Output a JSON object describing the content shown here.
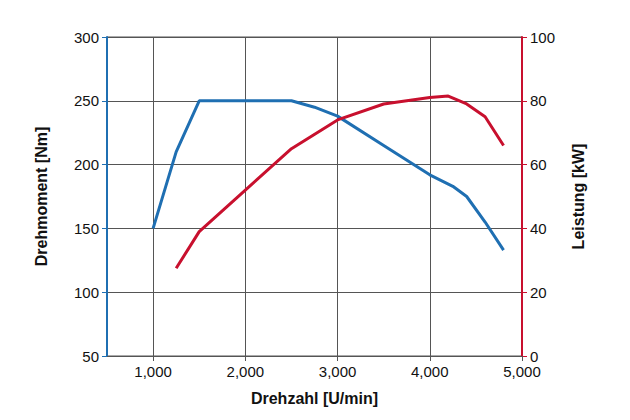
{
  "chart_data": {
    "type": "line",
    "xlabel": "Drehzahl [U/min]",
    "ylabel": "Drehmoment [Nm]",
    "y2label": "Leistung [kW]",
    "xlim": [
      500,
      5000
    ],
    "xticks": [
      1000,
      2000,
      3000,
      4000,
      5000
    ],
    "ylim": [
      50,
      300
    ],
    "yticks": [
      50,
      100,
      150,
      200,
      250,
      300
    ],
    "y2lim": [
      0,
      100
    ],
    "y2ticks": [
      0,
      20,
      40,
      60,
      80,
      100
    ],
    "grid": true,
    "series": [
      {
        "color": "#1f6fb2",
        "axis": "y",
        "x": [
          1000,
          1250,
          1500,
          2000,
          2500,
          2750,
          3000,
          3500,
          4000,
          4250,
          4400,
          4600,
          4800
        ],
        "values": [
          150,
          210,
          250,
          250,
          250,
          245,
          238,
          215,
          192,
          183,
          175,
          155,
          133
        ]
      },
      {
        "color": "#c8102e",
        "axis": "y2",
        "x": [
          1250,
          1500,
          2000,
          2500,
          3000,
          3500,
          4000,
          4200,
          4400,
          4600,
          4800
        ],
        "values": [
          27.5,
          39,
          52,
          65,
          74,
          79,
          81,
          81.5,
          79,
          75,
          66
        ]
      }
    ]
  }
}
